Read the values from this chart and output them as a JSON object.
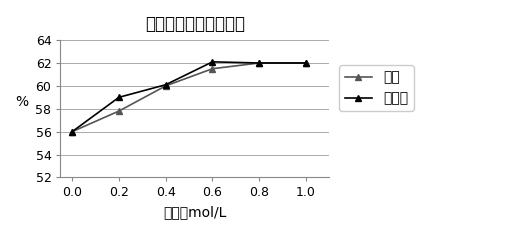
{
  "title": "不同酸对水解度的影响",
  "xlabel": "酸浓度mol/L",
  "ylabel": "%",
  "x": [
    0,
    0.2,
    0.4,
    0.6,
    0.8,
    1.0
  ],
  "series": [
    {
      "label": "盐酸",
      "y": [
        56.0,
        57.8,
        60.0,
        61.5,
        62.0,
        62.0
      ],
      "color": "#000000",
      "marker": "^",
      "linestyle": "-"
    },
    {
      "label": "柠檬酸",
      "y": [
        56.0,
        59.0,
        60.1,
        62.1,
        62.0,
        62.0
      ],
      "color": "#000000",
      "marker": "^",
      "linestyle": "-"
    }
  ],
  "ylim": [
    52,
    64
  ],
  "yticks": [
    52,
    54,
    56,
    58,
    60,
    62,
    64
  ],
  "xlim": [
    -0.05,
    1.1
  ],
  "xticks": [
    0,
    0.2,
    0.4,
    0.6,
    0.8,
    1.0
  ],
  "background_color": "#ffffff",
  "grid_color": "#aaaaaa",
  "title_fontsize": 12,
  "label_fontsize": 10,
  "tick_fontsize": 9,
  "legend_fontsize": 10
}
